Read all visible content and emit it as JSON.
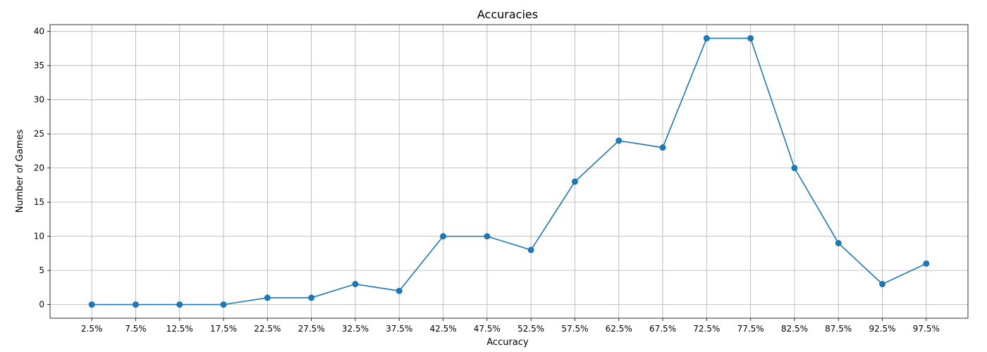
{
  "chart_data": {
    "type": "line",
    "title": "Accuracies",
    "xlabel": "Accuracy",
    "ylabel": "Number of Games",
    "categories": [
      "2.5%",
      "7.5%",
      "12.5%",
      "17.5%",
      "22.5%",
      "27.5%",
      "32.5%",
      "37.5%",
      "42.5%",
      "47.5%",
      "52.5%",
      "57.5%",
      "62.5%",
      "67.5%",
      "72.5%",
      "77.5%",
      "82.5%",
      "87.5%",
      "92.5%",
      "97.5%"
    ],
    "values": [
      0,
      0,
      0,
      0,
      1,
      1,
      3,
      2,
      10,
      10,
      8,
      18,
      24,
      23,
      39,
      39,
      20,
      9,
      3,
      6
    ],
    "ylim": [
      -2,
      41
    ],
    "yticks": [
      0,
      5,
      10,
      15,
      20,
      25,
      30,
      35,
      40
    ],
    "grid": true,
    "color": "#1f77b4",
    "marker": "circle"
  }
}
